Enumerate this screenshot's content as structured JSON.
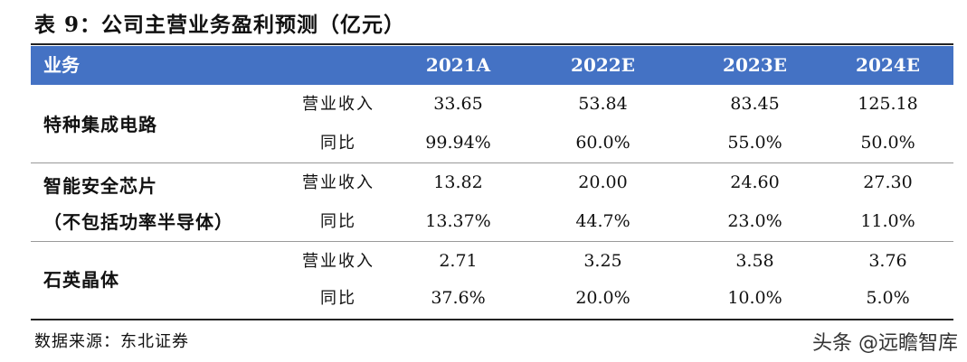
{
  "title": "表 9：公司主营业务盈利预测（亿元）",
  "header": {
    "business": "业务",
    "years": [
      "2021A",
      "2022E",
      "2023E",
      "2024E"
    ]
  },
  "segments": [
    {
      "name_lines": [
        "特种集成电路"
      ],
      "rows": [
        {
          "metric": "营业收入",
          "values": [
            "33.65",
            "53.84",
            "83.45",
            "125.18"
          ]
        },
        {
          "metric": "同比",
          "values": [
            "99.94%",
            "60.0%",
            "55.0%",
            "50.0%"
          ]
        }
      ]
    },
    {
      "name_lines": [
        "智能安全芯片",
        "（不包括功率半导体）"
      ],
      "rows": [
        {
          "metric": "营业收入",
          "values": [
            "13.82",
            "20.00",
            "24.60",
            "27.30"
          ]
        },
        {
          "metric": "同比",
          "values": [
            "13.37%",
            "44.7%",
            "23.0%",
            "11.0%"
          ]
        }
      ]
    },
    {
      "name_lines": [
        "石英晶体"
      ],
      "rows": [
        {
          "metric": "营业收入",
          "values": [
            "2.71",
            "3.25",
            "3.58",
            "3.76"
          ]
        },
        {
          "metric": "同比",
          "values": [
            "37.6%",
            "20.0%",
            "10.0%",
            "5.0%"
          ]
        }
      ]
    }
  ],
  "source": "数据来源：东北证券",
  "watermark": "头条 @远瞻智库"
}
